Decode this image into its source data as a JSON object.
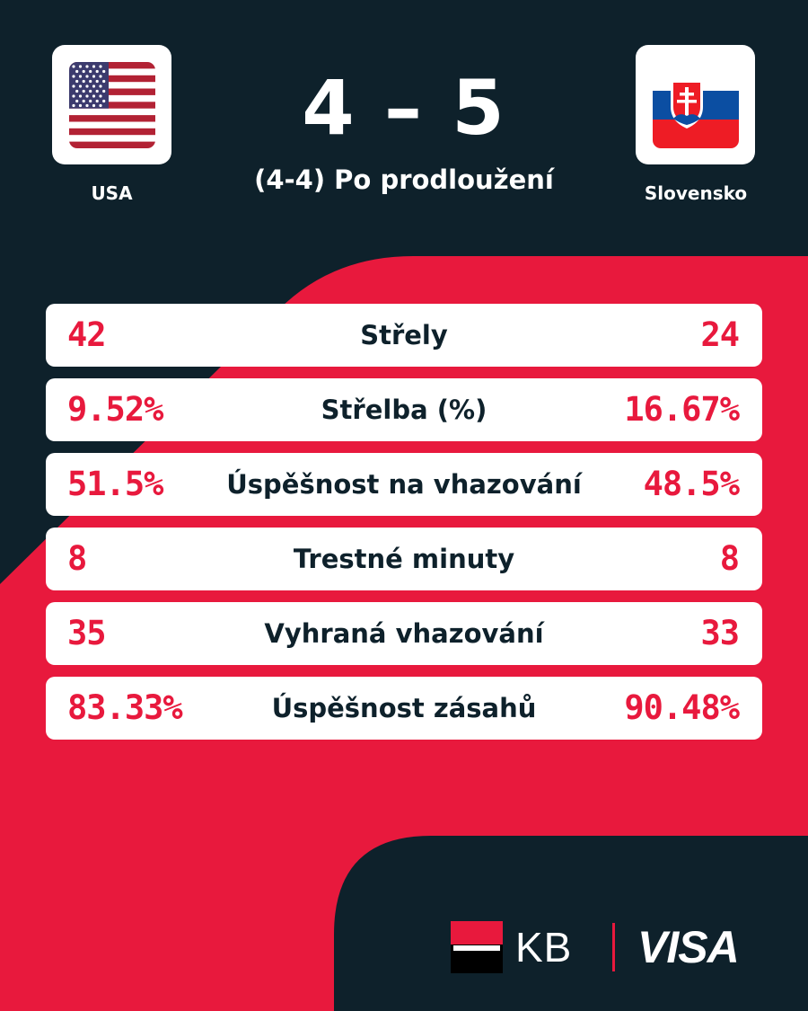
{
  "colors": {
    "background": "#0e212b",
    "accent": "#e8193d",
    "card": "#ffffff",
    "label_text": "#0e212b"
  },
  "home_team": {
    "name": "USA",
    "flag_icon": "usa-flag-icon"
  },
  "away_team": {
    "name": "Slovensko",
    "flag_icon": "slovakia-flag-icon"
  },
  "score": "4 – 5",
  "subtitle": "(4-4) Po prodloužení",
  "stats": [
    {
      "home": "42",
      "label": "Střely",
      "away": "24"
    },
    {
      "home": "9.52%",
      "label": "Střelba (%)",
      "away": "16.67%"
    },
    {
      "home": "51.5%",
      "label": "Úspěšnost na vhazování",
      "away": "48.5%"
    },
    {
      "home": "8",
      "label": "Trestné minuty",
      "away": "8"
    },
    {
      "home": "35",
      "label": "Vyhraná vhazování",
      "away": "33"
    },
    {
      "home": "83.33%",
      "label": "Úspěšnost zásahů",
      "away": "90.48%"
    }
  ],
  "sponsors": {
    "kb_label": "KB",
    "visa_label": "VISA"
  }
}
